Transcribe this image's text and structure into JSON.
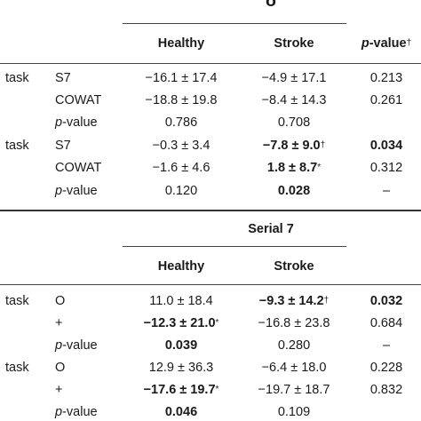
{
  "section1": {
    "title": "δ",
    "headers": {
      "col1": "Healthy",
      "col2": "Stroke",
      "col3_italic": "p",
      "col3_rest": "-value",
      "col3_sup": "†"
    },
    "rows": [
      {
        "label": "task",
        "sub": "S7",
        "v1": "−16.1 ± 17.4",
        "v2": "−4.9 ± 17.1",
        "v3": "0.213"
      },
      {
        "label": "",
        "sub": "COWAT",
        "v1": "−18.8 ± 19.8",
        "v2": "−8.4 ± 14.3",
        "v3": "0.261"
      },
      {
        "label": "",
        "sub_italic": "p",
        "sub_rest": "-value",
        "v1": "0.786",
        "v2": "0.708",
        "v3": ""
      },
      {
        "label": "task",
        "sub": "S7",
        "v1": "−0.3 ± 3.4",
        "v2": "−7.8 ± 9.0",
        "v2_sup": "†",
        "v3": "0.034"
      },
      {
        "label": "",
        "sub": "COWAT",
        "v1": "−1.6 ± 4.6",
        "v2": "1.8 ± 8.7",
        "v2_sup": "*",
        "v3": "0.312"
      },
      {
        "label": "",
        "sub_italic": "p",
        "sub_rest": "-value",
        "v1": "0.120",
        "v2": "0.028",
        "v3": "–"
      }
    ]
  },
  "section2": {
    "title": "Serial 7",
    "headers": {
      "col1": "Healthy",
      "col2": "Stroke"
    },
    "rows": [
      {
        "label": "task",
        "sub": "O",
        "v1": "11.0 ± 18.4",
        "v2": "−9.3 ± 14.2",
        "v2_sup": "†",
        "v3": "0.032"
      },
      {
        "label": "",
        "sub": "+",
        "v1": "−12.3 ± 21.0",
        "v1_sup": "*",
        "v2": "−16.8 ± 23.8",
        "v3": "0.684"
      },
      {
        "label": "",
        "sub_italic": "p",
        "sub_rest": "-value",
        "v1": "0.039",
        "v2": "0.280",
        "v3": "–"
      },
      {
        "label": "task",
        "sub": "O",
        "v1": "12.9 ± 36.3",
        "v2": "−6.4 ± 18.0",
        "v3": "0.228"
      },
      {
        "label": "",
        "sub": "+",
        "v1": "−17.6 ± 19.7",
        "v1_sup": "*",
        "v2": "−19.7 ± 18.7",
        "v3": "0.832"
      },
      {
        "label": "",
        "sub_italic": "p",
        "sub_rest": "-value",
        "v1": "0.046",
        "v2": "0.109",
        "v3": ""
      }
    ]
  }
}
